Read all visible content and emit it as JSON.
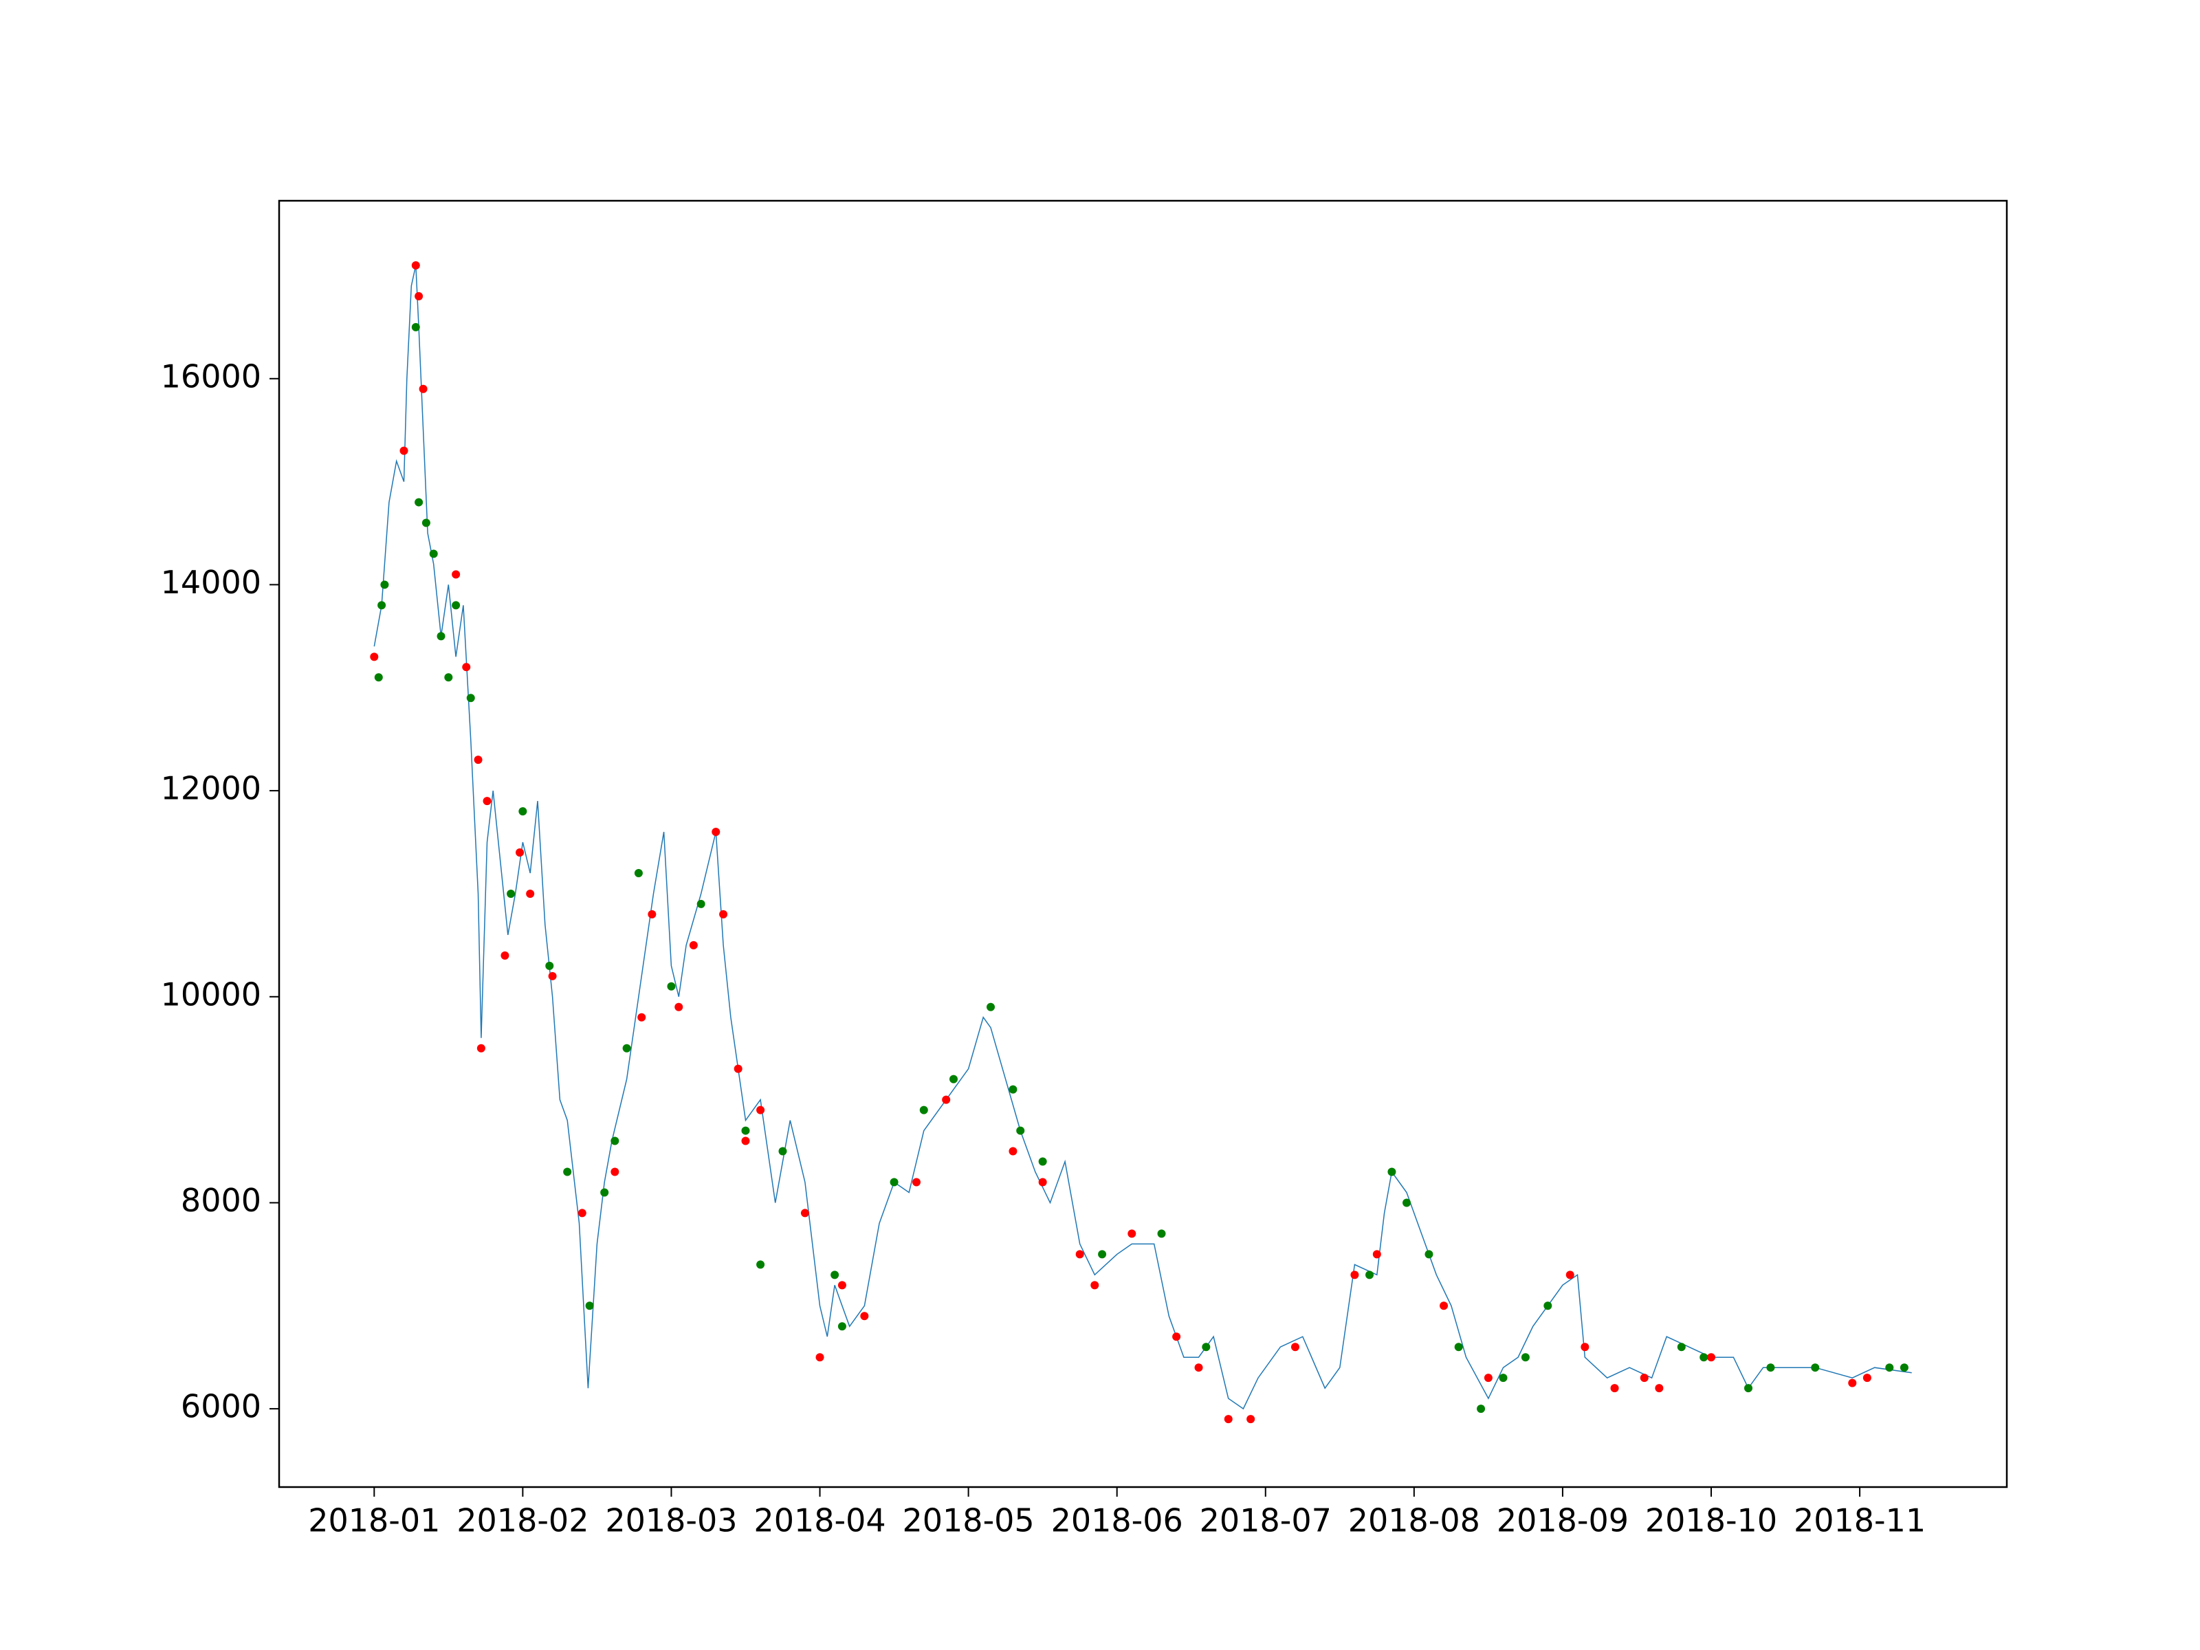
{
  "chart_data": {
    "type": "line",
    "xlim": [
      -0.64,
      10.99
    ],
    "ylim": [
      5240,
      17727
    ],
    "xticks": [
      {
        "value": 0,
        "label": "2018-01"
      },
      {
        "value": 1,
        "label": "2018-02"
      },
      {
        "value": 2,
        "label": "2018-03"
      },
      {
        "value": 3,
        "label": "2018-04"
      },
      {
        "value": 4,
        "label": "2018-05"
      },
      {
        "value": 5,
        "label": "2018-06"
      },
      {
        "value": 6,
        "label": "2018-07"
      },
      {
        "value": 7,
        "label": "2018-08"
      },
      {
        "value": 8,
        "label": "2018-09"
      },
      {
        "value": 9,
        "label": "2018-10"
      },
      {
        "value": 10,
        "label": "2018-11"
      }
    ],
    "yticks": [
      6000,
      8000,
      10000,
      12000,
      14000,
      16000
    ],
    "series": [
      {
        "type": "line",
        "color": "#1f77b4",
        "x": [
          0.0,
          0.05,
          0.1,
          0.15,
          0.2,
          0.22,
          0.25,
          0.28,
          0.3,
          0.33,
          0.36,
          0.4,
          0.45,
          0.5,
          0.55,
          0.6,
          0.65,
          0.7,
          0.72,
          0.76,
          0.8,
          0.85,
          0.9,
          0.95,
          1.0,
          1.05,
          1.1,
          1.15,
          1.2,
          1.25,
          1.3,
          1.38,
          1.44,
          1.5,
          1.55,
          1.6,
          1.7,
          1.8,
          1.88,
          1.95,
          2.0,
          2.05,
          2.1,
          2.2,
          2.3,
          2.35,
          2.4,
          2.5,
          2.6,
          2.7,
          2.8,
          2.9,
          3.0,
          3.05,
          3.1,
          3.2,
          3.3,
          3.4,
          3.5,
          3.6,
          3.7,
          3.8,
          3.9,
          4.0,
          4.1,
          4.15,
          4.25,
          4.35,
          4.45,
          4.55,
          4.65,
          4.75,
          4.85,
          5.0,
          5.1,
          5.25,
          5.35,
          5.45,
          5.55,
          5.65,
          5.75,
          5.85,
          5.95,
          6.1,
          6.25,
          6.4,
          6.5,
          6.6,
          6.75,
          6.8,
          6.85,
          6.95,
          7.05,
          7.15,
          7.25,
          7.35,
          7.5,
          7.6,
          7.7,
          7.8,
          7.9,
          8.0,
          8.1,
          8.15,
          8.3,
          8.45,
          8.6,
          8.7,
          8.85,
          9.0,
          9.15,
          9.25,
          9.35,
          9.5,
          9.7,
          9.95,
          10.1,
          10.35
        ],
        "values": [
          13400,
          13800,
          14800,
          15200,
          15000,
          16000,
          16900,
          17100,
          16500,
          15500,
          14500,
          14200,
          13500,
          14000,
          13300,
          13800,
          12500,
          11000,
          9600,
          11500,
          12000,
          11300,
          10600,
          11000,
          11500,
          11200,
          11900,
          10700,
          10000,
          9000,
          8800,
          7800,
          6200,
          7600,
          8200,
          8600,
          9200,
          10200,
          11000,
          11600,
          10300,
          10000,
          10500,
          11000,
          11600,
          10500,
          9800,
          8800,
          9000,
          8000,
          8800,
          8200,
          7000,
          6700,
          7200,
          6800,
          7000,
          7800,
          8200,
          8100,
          8700,
          8900,
          9100,
          9300,
          9800,
          9700,
          9200,
          8700,
          8300,
          8000,
          8400,
          7600,
          7300,
          7500,
          7600,
          7600,
          6900,
          6500,
          6500,
          6700,
          6100,
          6000,
          6300,
          6600,
          6700,
          6200,
          6400,
          7400,
          7300,
          7900,
          8300,
          8100,
          7700,
          7300,
          7000,
          6500,
          6100,
          6400,
          6500,
          6800,
          7000,
          7200,
          7300,
          6500,
          6300,
          6400,
          6300,
          6700,
          6600,
          6500,
          6500,
          6200,
          6400,
          6400,
          6400,
          6300,
          6400,
          6350
        ]
      },
      {
        "type": "scatter",
        "color": "#ff0000",
        "x": [
          0.0,
          0.2,
          0.28,
          0.3,
          0.33,
          0.55,
          0.62,
          0.7,
          0.72,
          0.76,
          0.88,
          0.98,
          1.05,
          1.2,
          1.4,
          1.62,
          1.8,
          1.87,
          2.05,
          2.15,
          2.3,
          2.35,
          2.45,
          2.5,
          2.6,
          2.9,
          3.0,
          3.15,
          3.3,
          3.65,
          3.85,
          4.3,
          4.5,
          4.75,
          4.85,
          5.1,
          5.4,
          5.55,
          5.75,
          5.9,
          6.2,
          6.6,
          6.75,
          7.2,
          7.5,
          8.05,
          8.15,
          8.35,
          8.55,
          8.65,
          9.0,
          9.95,
          10.05
        ],
        "values": [
          13300,
          15300,
          17100,
          16800,
          15900,
          14100,
          13200,
          12300,
          9500,
          11900,
          10400,
          11400,
          11000,
          10200,
          7900,
          8300,
          9800,
          10800,
          9900,
          10500,
          11600,
          10800,
          9300,
          8600,
          8900,
          7900,
          6500,
          7200,
          6900,
          8200,
          9000,
          8500,
          8200,
          7500,
          7200,
          7700,
          6700,
          6400,
          5900,
          5900,
          6600,
          7300,
          7500,
          7000,
          6300,
          7300,
          6600,
          6200,
          6300,
          6200,
          6500,
          6250,
          6300
        ]
      },
      {
        "type": "scatter",
        "color": "#008000",
        "x": [
          0.03,
          0.05,
          0.07,
          0.28,
          0.3,
          0.35,
          0.4,
          0.45,
          0.5,
          0.55,
          0.65,
          0.92,
          1.0,
          1.18,
          1.3,
          1.45,
          1.55,
          1.62,
          1.7,
          1.78,
          2.0,
          2.2,
          2.5,
          2.6,
          2.75,
          3.1,
          3.15,
          3.5,
          3.7,
          3.9,
          4.15,
          4.3,
          4.35,
          4.5,
          4.9,
          5.3,
          5.6,
          6.7,
          6.85,
          6.95,
          7.1,
          7.3,
          7.45,
          7.6,
          7.75,
          7.9,
          8.8,
          8.95,
          9.25,
          9.4,
          9.7,
          10.2,
          10.3
        ],
        "values": [
          13100,
          13800,
          14000,
          16500,
          14800,
          14600,
          14300,
          13500,
          13100,
          13800,
          12900,
          11000,
          11800,
          10300,
          8300,
          7000,
          8100,
          8600,
          9500,
          11200,
          10100,
          10900,
          8700,
          7400,
          8500,
          7300,
          6800,
          8200,
          8900,
          9200,
          9900,
          9100,
          8700,
          8400,
          7500,
          7700,
          6600,
          7300,
          8300,
          8000,
          7500,
          6600,
          6000,
          6300,
          6500,
          7000,
          6600,
          6500,
          6200,
          6400,
          6400,
          6400,
          6400
        ]
      }
    ]
  }
}
